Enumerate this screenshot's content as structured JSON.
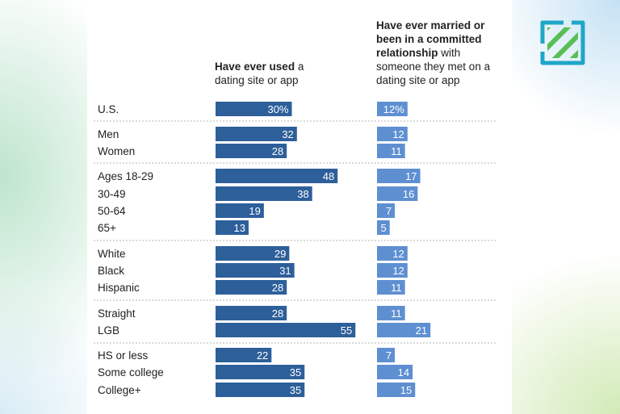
{
  "headers": {
    "col1_bold": "Have ever used",
    "col1_rest": " a dating site or app",
    "col2_bold": "Have ever married or been in a committed relationship",
    "col2_rest": " with someone they met on a dating site or app"
  },
  "colors": {
    "col1_bar": "#2d5f9a",
    "col2_bar": "#5e8fd1",
    "separator": "#b5b5b5",
    "logo_green": "#58bf55",
    "logo_teal": "#1fa6c8"
  },
  "logo_icon": "striped-square-logo-icon",
  "chart_data": [
    {
      "type": "bar",
      "orientation": "horizontal",
      "title": "Have ever used a dating site or app",
      "categories": [
        "U.S.",
        "Men",
        "Women",
        "Ages 18-29",
        "30-49",
        "50-64",
        "65+",
        "White",
        "Black",
        "Hispanic",
        "Straight",
        "LGB",
        "HS or less",
        "Some college",
        "College+"
      ],
      "groups": [
        [
          "U.S."
        ],
        [
          "Men",
          "Women"
        ],
        [
          "Ages 18-29",
          "30-49",
          "50-64",
          "65+"
        ],
        [
          "White",
          "Black",
          "Hispanic"
        ],
        [
          "Straight",
          "LGB"
        ],
        [
          "HS or less",
          "Some college",
          "College+"
        ]
      ],
      "values": [
        30,
        32,
        28,
        48,
        38,
        19,
        13,
        29,
        31,
        28,
        28,
        55,
        22,
        35,
        35
      ],
      "value_labels": [
        "30%",
        "32",
        "28",
        "48",
        "38",
        "19",
        "13",
        "29",
        "31",
        "28",
        "28",
        "55",
        "22",
        "35",
        "35"
      ],
      "xlim": [
        0,
        100
      ],
      "grid": false
    },
    {
      "type": "bar",
      "orientation": "horizontal",
      "title": "Have ever married or been in a committed relationship with someone they met on a dating site or app",
      "categories": [
        "U.S.",
        "Men",
        "Women",
        "Ages 18-29",
        "30-49",
        "50-64",
        "65+",
        "White",
        "Black",
        "Hispanic",
        "Straight",
        "LGB",
        "HS or less",
        "Some college",
        "College+"
      ],
      "values": [
        12,
        12,
        11,
        17,
        16,
        7,
        5,
        12,
        12,
        11,
        11,
        21,
        7,
        14,
        15
      ],
      "value_labels": [
        "12%",
        "12",
        "11",
        "17",
        "16",
        "7",
        "5",
        "12",
        "12",
        "11",
        "11",
        "21",
        "7",
        "14",
        "15"
      ],
      "xlim": [
        0,
        100
      ],
      "grid": false
    }
  ]
}
